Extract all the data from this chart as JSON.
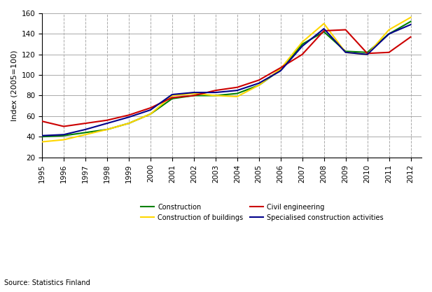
{
  "ylabel": "Index (2005=100)",
  "source": "Source: Statistics Finland",
  "years": [
    1995,
    1996,
    1997,
    1998,
    1999,
    2000,
    2001,
    2002,
    2003,
    2004,
    2005,
    2006,
    2007,
    2008,
    2009,
    2010,
    2011,
    2012
  ],
  "construction": [
    40,
    41,
    44,
    47,
    53,
    62,
    77,
    80,
    80,
    82,
    90,
    105,
    130,
    142,
    123,
    122,
    140,
    152
  ],
  "construction_of_buildings": [
    35,
    37,
    42,
    47,
    53,
    62,
    80,
    82,
    80,
    79,
    90,
    106,
    132,
    150,
    122,
    120,
    144,
    156
  ],
  "civil_engineering": [
    55,
    50,
    53,
    56,
    61,
    68,
    78,
    80,
    85,
    88,
    95,
    107,
    120,
    143,
    144,
    121,
    122,
    137
  ],
  "specialised_construction": [
    41,
    42,
    47,
    53,
    59,
    66,
    81,
    83,
    83,
    85,
    92,
    104,
    128,
    145,
    122,
    120,
    140,
    149
  ],
  "ylim": [
    20,
    160
  ],
  "yticks": [
    20,
    40,
    60,
    80,
    100,
    120,
    140,
    160
  ],
  "colors": {
    "construction": "#008000",
    "construction_of_buildings": "#FFD700",
    "civil_engineering": "#CC0000",
    "specialised_construction": "#00008B"
  },
  "legend": {
    "Construction": "#008000",
    "Construction of buildings": "#FFD700",
    "Civil engineering": "#CC0000",
    "Specialised construction activities": "#00008B"
  },
  "background_color": "#FFFFFF",
  "grid_color": "#AAAAAA",
  "linewidth": 1.5
}
